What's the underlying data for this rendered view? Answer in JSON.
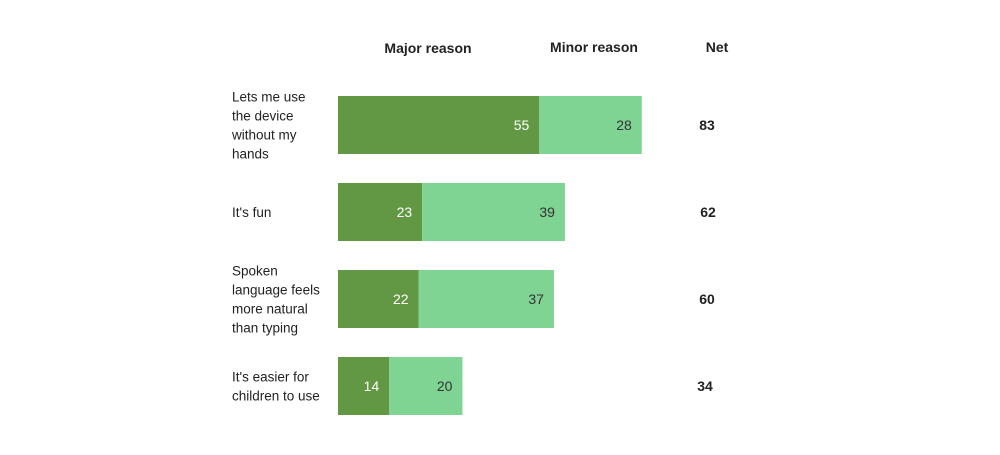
{
  "legend": {
    "major_label": "Major reason",
    "minor_label": "Minor reason",
    "net_label": "Net"
  },
  "colors": {
    "major": "#629843",
    "minor": "#7fd393",
    "major_text": "#ffffff",
    "minor_text": "#333333"
  },
  "chart_data": {
    "type": "bar",
    "orientation": "horizontal",
    "stacked": true,
    "categories": [
      "Lets me use the device without my hands",
      "It's fun",
      "Spoken language feels more natural than typing",
      "It's easier for children to use"
    ],
    "series": [
      {
        "name": "Major reason",
        "values": [
          55,
          23,
          22,
          14
        ]
      },
      {
        "name": "Minor reason",
        "values": [
          28,
          39,
          37,
          20
        ]
      }
    ],
    "net": {
      "name": "Net",
      "values": [
        83,
        62,
        60,
        34
      ]
    },
    "xlim": [
      0,
      100
    ],
    "grid": false
  }
}
